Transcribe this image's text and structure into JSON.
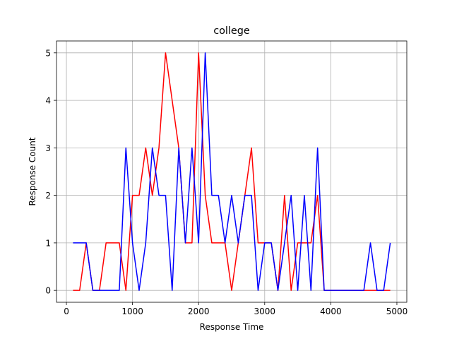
{
  "chart_data": {
    "type": "line",
    "title": "college",
    "xlabel": "Response Time",
    "ylabel": "Response Count",
    "xlim": [
      -150,
      5150
    ],
    "ylim": [
      -0.25,
      5.25
    ],
    "xticks": [
      0,
      1000,
      2000,
      3000,
      4000,
      5000
    ],
    "xtick_labels": [
      "0",
      "1000",
      "2000",
      "3000",
      "4000",
      "5000"
    ],
    "yticks": [
      0,
      1,
      2,
      3,
      4,
      5
    ],
    "ytick_labels": [
      "0",
      "1",
      "2",
      "3",
      "4",
      "5"
    ],
    "grid": true,
    "x": [
      100,
      200,
      300,
      400,
      500,
      600,
      700,
      800,
      900,
      1000,
      1100,
      1200,
      1300,
      1400,
      1500,
      1600,
      1700,
      1800,
      1900,
      2000,
      2100,
      2200,
      2300,
      2400,
      2500,
      2600,
      2700,
      2800,
      2900,
      3000,
      3100,
      3200,
      3300,
      3400,
      3500,
      3600,
      3700,
      3800,
      3900,
      4000,
      4100,
      4200,
      4300,
      4400,
      4500,
      4600,
      4700,
      4800,
      4900
    ],
    "series": [
      {
        "name": "red series",
        "color": "#ff0000",
        "values": [
          0,
          0,
          1,
          0,
          0,
          1,
          1,
          1,
          0,
          2,
          2,
          3,
          2,
          3,
          5,
          4,
          3,
          1,
          1,
          5,
          2,
          1,
          1,
          1,
          0,
          1,
          2,
          3,
          1,
          1,
          1,
          0,
          2,
          0,
          1,
          1,
          1,
          2,
          0,
          0,
          0,
          0,
          0,
          0,
          0,
          0,
          0,
          0,
          0
        ]
      },
      {
        "name": "blue series",
        "color": "#0000ff",
        "values": [
          1,
          1,
          1,
          0,
          0,
          0,
          0,
          0,
          3,
          1,
          0,
          1,
          3,
          2,
          2,
          0,
          3,
          1,
          3,
          1,
          5,
          2,
          2,
          1,
          2,
          1,
          2,
          2,
          0,
          1,
          1,
          0,
          1,
          2,
          0,
          2,
          0,
          3,
          0,
          0,
          0,
          0,
          0,
          0,
          0,
          1,
          0,
          0,
          1
        ]
      }
    ]
  }
}
